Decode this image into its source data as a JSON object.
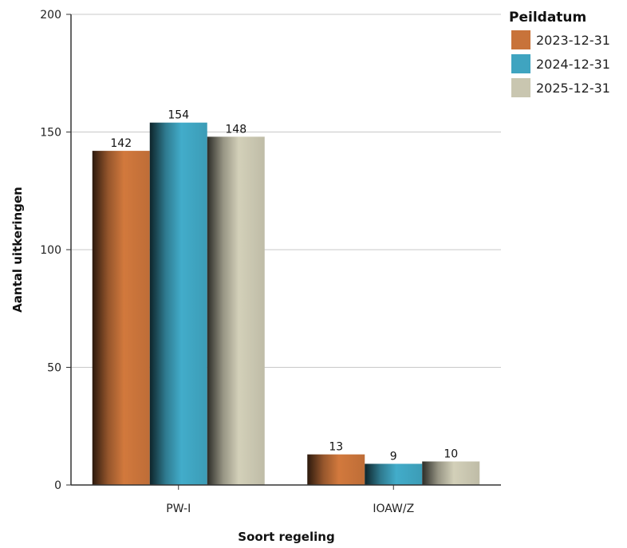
{
  "chart_data": {
    "type": "bar",
    "categories": [
      "PW-I",
      "IOAW/Z"
    ],
    "series": [
      {
        "name": "2023-12-31",
        "values": [
          142,
          13
        ],
        "color": "#c8733a"
      },
      {
        "name": "2024-12-31",
        "values": [
          154,
          9
        ],
        "color": "#3fa4c0"
      },
      {
        "name": "2025-12-31",
        "values": [
          148,
          10
        ],
        "color": "#c9c6b0"
      }
    ],
    "ylim": [
      0,
      200
    ],
    "yticks": [
      0,
      50,
      100,
      150,
      200
    ],
    "xlabel": "Soort regeling",
    "ylabel": "Aantal uitkeringen",
    "legend_title": "Peildatum",
    "legend_position": "top-right",
    "grid": true
  }
}
